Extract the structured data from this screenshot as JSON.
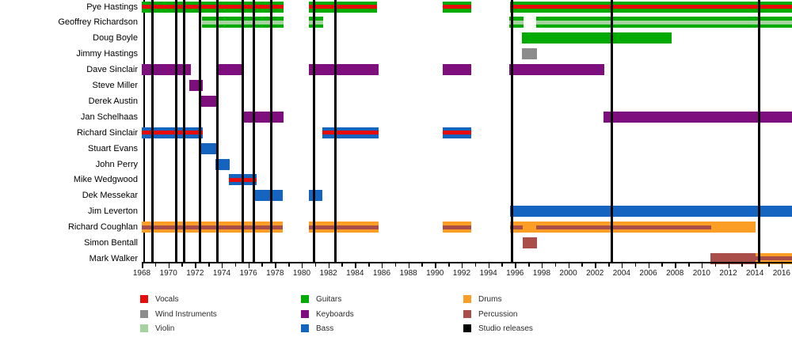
{
  "chart_data": {
    "type": "timeline",
    "description": "Band members timeline (gantt-style) with studio release markers",
    "x_axis": {
      "start_year": 1968,
      "end_year": 2016,
      "label_interval": 2,
      "minor_tick_interval": 1,
      "plot_end_year": 2016.85,
      "tick_labels": [
        "1968",
        "1970",
        "1972",
        "1974",
        "1976",
        "1978",
        "1980",
        "1982",
        "1984",
        "1986",
        "1988",
        "1990",
        "1992",
        "1994",
        "1996",
        "1998",
        "2000",
        "2002",
        "2004",
        "2006",
        "2008",
        "2010",
        "2012",
        "2014",
        "2016"
      ]
    },
    "colors": {
      "vocals": "#e60c0c",
      "wind": "#8c8c8c",
      "violin": "#a5d3a0",
      "guitars": "#00ab00",
      "keyboards": "#7e0d7e",
      "bass": "#1565c0",
      "drums": "#fa9e25",
      "percussion": "#a94e49",
      "releases": "#000000"
    },
    "release_years": [
      1968.8,
      1970.6,
      1971.2,
      1972.35,
      1973.7,
      1975.6,
      1976.4,
      1977.7,
      1980.9,
      1982.5,
      1995.75,
      2003.25,
      2014.3
    ],
    "members": [
      {
        "name": "Pye Hastings",
        "bars": [
          {
            "start": 1968.0,
            "end": 1978.65,
            "base": "guitars",
            "stripe": "vocals"
          },
          {
            "start": 1980.55,
            "end": 1985.65,
            "base": "guitars",
            "stripe": "vocals"
          },
          {
            "start": 1990.6,
            "end": 1992.7,
            "base": "guitars",
            "stripe": "vocals"
          },
          {
            "start": 1995.6,
            "end": 2016.85,
            "base": "guitars",
            "stripe": "vocals"
          }
        ]
      },
      {
        "name": "Geoffrey Richardson",
        "bars": [
          {
            "start": 1972.5,
            "end": 1978.65,
            "base": "guitars",
            "stripe": "violin"
          },
          {
            "start": 1980.55,
            "end": 1981.6,
            "base": "guitars",
            "stripe": "violin"
          },
          {
            "start": 1995.55,
            "end": 1996.65,
            "base": "guitars",
            "stripe": "violin"
          },
          {
            "start": 1997.6,
            "end": 2016.85,
            "base": "guitars",
            "stripe": "violin"
          }
        ]
      },
      {
        "name": "Doug Boyle",
        "bars": [
          {
            "start": 1996.55,
            "end": 2007.75,
            "base": "guitars",
            "stripe": null
          }
        ]
      },
      {
        "name": "Jimmy Hastings",
        "bars": [
          {
            "start": 1996.5,
            "end": 1997.65,
            "base": "wind",
            "stripe": null
          }
        ]
      },
      {
        "name": "Dave Sinclair",
        "bars": [
          {
            "start": 1968.0,
            "end": 1971.7,
            "base": "keyboards",
            "stripe": null
          },
          {
            "start": 1973.6,
            "end": 1975.55,
            "base": "keyboards",
            "stripe": null
          },
          {
            "start": 1980.55,
            "end": 1985.75,
            "base": "keyboards",
            "stripe": null
          },
          {
            "start": 1990.6,
            "end": 1992.7,
            "base": "keyboards",
            "stripe": null
          },
          {
            "start": 1995.55,
            "end": 2002.7,
            "base": "keyboards",
            "stripe": null
          }
        ]
      },
      {
        "name": "Steve Miller",
        "bars": [
          {
            "start": 1971.55,
            "end": 1972.6,
            "base": "keyboards",
            "stripe": null
          }
        ]
      },
      {
        "name": "Derek Austin",
        "bars": [
          {
            "start": 1972.45,
            "end": 1973.6,
            "base": "keyboards",
            "stripe": null
          }
        ]
      },
      {
        "name": "Jan Schelhaas",
        "bars": [
          {
            "start": 1975.55,
            "end": 1978.65,
            "base": "keyboards",
            "stripe": null
          },
          {
            "start": 2002.65,
            "end": 2016.85,
            "base": "keyboards",
            "stripe": null
          }
        ]
      },
      {
        "name": "Richard Sinclair",
        "bars": [
          {
            "start": 1968.0,
            "end": 1972.6,
            "base": "bass",
            "stripe": "vocals"
          },
          {
            "start": 1981.55,
            "end": 1985.75,
            "base": "bass",
            "stripe": "vocals"
          },
          {
            "start": 1990.6,
            "end": 1992.7,
            "base": "bass",
            "stripe": "vocals"
          }
        ]
      },
      {
        "name": "Stuart Evans",
        "bars": [
          {
            "start": 1972.45,
            "end": 1973.6,
            "base": "bass",
            "stripe": null
          }
        ]
      },
      {
        "name": "John Perry",
        "bars": [
          {
            "start": 1973.5,
            "end": 1974.6,
            "base": "bass",
            "stripe": null
          }
        ]
      },
      {
        "name": "Mike Wedgwood",
        "bars": [
          {
            "start": 1974.55,
            "end": 1976.6,
            "base": "bass",
            "stripe": "vocals"
          }
        ]
      },
      {
        "name": "Dek Messekar",
        "bars": [
          {
            "start": 1976.5,
            "end": 1978.6,
            "base": "bass",
            "stripe": null
          },
          {
            "start": 1980.55,
            "end": 1981.55,
            "base": "bass",
            "stripe": null
          }
        ]
      },
      {
        "name": "Jim Leverton",
        "bars": [
          {
            "start": 1995.6,
            "end": 2016.85,
            "base": "bass",
            "stripe": null
          }
        ]
      },
      {
        "name": "Richard Coughlan",
        "bars": [
          {
            "start": 1968.0,
            "end": 1978.6,
            "base": "drums",
            "stripe": "percussion"
          },
          {
            "start": 1980.55,
            "end": 1985.75,
            "base": "drums",
            "stripe": "percussion"
          },
          {
            "start": 1990.6,
            "end": 1992.7,
            "base": "drums",
            "stripe": "percussion"
          },
          {
            "start": 1995.6,
            "end": 1996.6,
            "base": "drums",
            "stripe": "percussion"
          },
          {
            "start": 1996.6,
            "end": 1997.6,
            "base": "drums",
            "stripe": null
          },
          {
            "start": 1997.6,
            "end": 2010.75,
            "base": "drums",
            "stripe": "percussion"
          },
          {
            "start": 2010.75,
            "end": 2014.05,
            "base": "drums",
            "stripe": null
          }
        ]
      },
      {
        "name": "Simon Bentall",
        "bars": [
          {
            "start": 1996.6,
            "end": 1997.65,
            "base": "percussion",
            "stripe": null
          }
        ]
      },
      {
        "name": "Mark Walker",
        "bars": [
          {
            "start": 2010.65,
            "end": 2014.05,
            "base": "percussion",
            "stripe": null
          },
          {
            "start": 2014.05,
            "end": 2016.85,
            "base": "drums",
            "stripe": "percussion"
          }
        ]
      }
    ],
    "legend": {
      "columns": [
        [
          {
            "label": "Vocals",
            "color_key": "vocals"
          },
          {
            "label": "Wind Instruments",
            "color_key": "wind"
          },
          {
            "label": "Violin",
            "color_key": "violin"
          }
        ],
        [
          {
            "label": "Guitars",
            "color_key": "guitars"
          },
          {
            "label": "Keyboards",
            "color_key": "keyboards"
          },
          {
            "label": "Bass",
            "color_key": "bass"
          }
        ],
        [
          {
            "label": "Drums",
            "color_key": "drums"
          },
          {
            "label": "Percussion",
            "color_key": "percussion"
          },
          {
            "label": "Studio releases",
            "color_key": "releases"
          }
        ]
      ]
    }
  }
}
